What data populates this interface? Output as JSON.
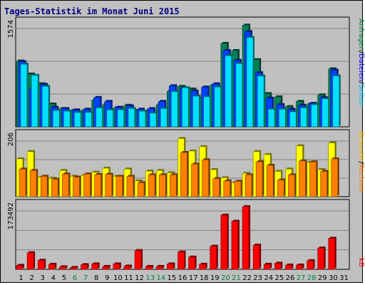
{
  "title": "Tages-Statistik im Monat Juni 2015",
  "panels": {
    "top": {
      "max_label": "1574",
      "legend": [
        {
          "text": "Anfragen",
          "color": "#008040"
        },
        {
          "text": "/",
          "color": "#000000"
        },
        {
          "text": "Dateien",
          "color": "#0000ff"
        },
        {
          "text": "/",
          "color": "#000000"
        },
        {
          "text": "Seiten",
          "color": "#00c0ff"
        }
      ]
    },
    "middle": {
      "max_label": "206",
      "legend": [
        {
          "text": "Besuche",
          "color": "#ffc000"
        },
        {
          "text": "/",
          "color": "#000000"
        },
        {
          "text": "Rechner",
          "color": "#ff8000"
        }
      ]
    },
    "bottom": {
      "max_label": "173492",
      "legend": [
        {
          "text": "kB",
          "color": "#ff0000"
        }
      ]
    }
  },
  "colors": {
    "background": "#c0c0c0",
    "plot_border": "#000000",
    "grid": "#808080",
    "hits": "#00805a",
    "files": "#0040ff",
    "pages": "#00e0ff",
    "visits": "#ffff00",
    "sites": "#ff8000",
    "kbytes": "#ff0000",
    "weekday_label": "#000000",
    "weekend_label": "#008040"
  },
  "chart_data": [
    {
      "type": "bar",
      "categories": [
        "1",
        "2",
        "3",
        "4",
        "5",
        "6",
        "7",
        "8",
        "9",
        "10",
        "11",
        "12",
        "13",
        "14",
        "15",
        "16",
        "17",
        "18",
        "19",
        "20",
        "21",
        "22",
        "23",
        "24",
        "25",
        "26",
        "27",
        "28",
        "29",
        "30",
        "31"
      ],
      "weekend_days": [
        "6",
        "7",
        "13",
        "14",
        "20",
        "21",
        "27",
        "28"
      ],
      "ylim": [
        0,
        1574
      ],
      "series": [
        {
          "name": "Anfragen",
          "values": [
            1010,
            810,
            660,
            350,
            280,
            250,
            250,
            410,
            340,
            290,
            330,
            250,
            250,
            340,
            550,
            620,
            580,
            440,
            640,
            1280,
            1170,
            1560,
            1030,
            510,
            460,
            310,
            390,
            350,
            490,
            890,
            0
          ]
        },
        {
          "name": "Dateien",
          "values": [
            1000,
            590,
            650,
            300,
            280,
            260,
            270,
            450,
            390,
            300,
            320,
            270,
            280,
            390,
            630,
            590,
            550,
            610,
            660,
            1170,
            1020,
            1460,
            830,
            440,
            340,
            270,
            330,
            360,
            450,
            870,
            0
          ]
        },
        {
          "name": "Seiten",
          "values": [
            960,
            790,
            620,
            250,
            240,
            220,
            220,
            290,
            260,
            260,
            280,
            240,
            210,
            280,
            540,
            600,
            470,
            460,
            610,
            1090,
            970,
            1370,
            780,
            270,
            270,
            230,
            290,
            340,
            430,
            780,
            0
          ]
        }
      ]
    },
    {
      "type": "bar",
      "categories": [
        "1",
        "2",
        "3",
        "4",
        "5",
        "6",
        "7",
        "8",
        "9",
        "10",
        "11",
        "12",
        "13",
        "14",
        "15",
        "16",
        "17",
        "18",
        "19",
        "20",
        "21",
        "22",
        "23",
        "24",
        "25",
        "26",
        "27",
        "28",
        "29",
        "30",
        "31"
      ],
      "ylim": [
        0,
        206
      ],
      "series": [
        {
          "name": "Besuche",
          "values": [
            130,
            155,
            67,
            63,
            90,
            70,
            73,
            84,
            98,
            70,
            95,
            54,
            88,
            90,
            82,
            200,
            157,
            172,
            93,
            65,
            48,
            80,
            155,
            145,
            87,
            95,
            175,
            118,
            93,
            185,
            0
          ]
        },
        {
          "name": "Rechner",
          "values": [
            95,
            90,
            70,
            60,
            78,
            67,
            78,
            76,
            77,
            70,
            70,
            48,
            75,
            75,
            75,
            152,
            112,
            127,
            62,
            54,
            53,
            75,
            120,
            108,
            57,
            75,
            123,
            120,
            87,
            130,
            0
          ]
        }
      ]
    },
    {
      "type": "bar",
      "categories": [
        "1",
        "2",
        "3",
        "4",
        "5",
        "6",
        "7",
        "8",
        "9",
        "10",
        "11",
        "12",
        "13",
        "14",
        "15",
        "16",
        "17",
        "18",
        "19",
        "20",
        "21",
        "22",
        "23",
        "24",
        "25",
        "26",
        "27",
        "28",
        "29",
        "30",
        "31"
      ],
      "ylim": [
        0,
        173492
      ],
      "series": [
        {
          "name": "kB",
          "values": [
            11000,
            46000,
            25000,
            14000,
            7000,
            5000,
            13000,
            15000,
            8000,
            15000,
            9000,
            52000,
            8000,
            8000,
            15000,
            48000,
            34000,
            14000,
            64000,
            150000,
            133000,
            173492,
            67000,
            14000,
            17000,
            12000,
            12000,
            24000,
            59000,
            86000,
            0
          ]
        }
      ]
    }
  ]
}
